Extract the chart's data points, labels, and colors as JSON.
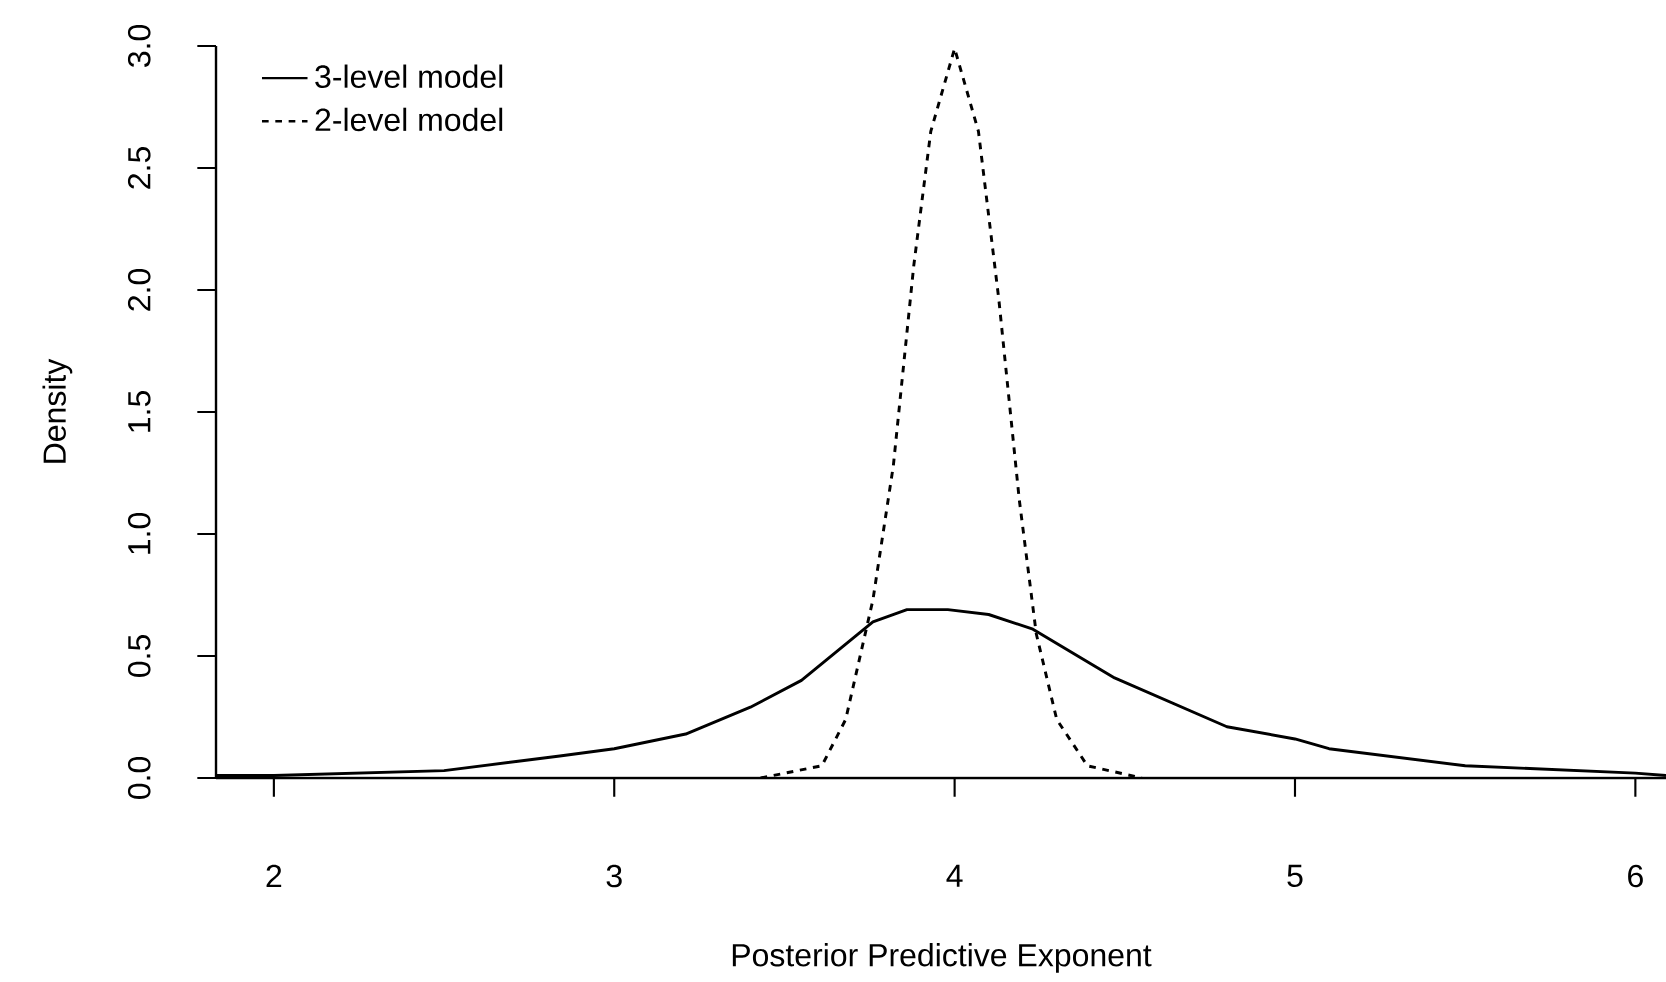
{
  "chart_data": {
    "type": "line",
    "xlabel": "Posterior Predictive Exponent",
    "ylabel": "Density",
    "xlim": [
      1.83,
      6.09
    ],
    "ylim": [
      0,
      3
    ],
    "xticks": [
      2,
      3,
      4,
      5,
      6
    ],
    "yticks": [
      {
        "value": 0,
        "label": "0.0"
      },
      {
        "value": 0.5,
        "label": "0.5"
      },
      {
        "value": 1,
        "label": "1.0"
      },
      {
        "value": 1.5,
        "label": "1.5"
      },
      {
        "value": 2,
        "label": "2.0"
      },
      {
        "value": 2.5,
        "label": "2.5"
      },
      {
        "value": 3,
        "label": "3.0"
      }
    ],
    "legend": "top left",
    "marker": "none",
    "series": [
      {
        "name": "3-level model",
        "color": "#000000",
        "line_style": "solid",
        "x": [
          1.83,
          2.0,
          2.5,
          2.84,
          3.0,
          3.21,
          3.4,
          3.55,
          3.76,
          3.86,
          3.98,
          4.1,
          4.23,
          4.47,
          4.8,
          5.0,
          5.1,
          5.5,
          6.0,
          6.09
        ],
        "values": [
          0.01,
          0.01,
          0.03,
          0.09,
          0.12,
          0.18,
          0.29,
          0.4,
          0.64,
          0.69,
          0.69,
          0.67,
          0.61,
          0.41,
          0.21,
          0.16,
          0.12,
          0.05,
          0.02,
          0.01
        ]
      },
      {
        "name": "2-level model",
        "color": "#000000",
        "line_style": "dotted",
        "x": [
          3.43,
          3.61,
          3.68,
          3.76,
          3.82,
          3.88,
          3.93,
          4.0,
          4.07,
          4.13,
          4.19,
          4.24,
          4.3,
          4.39,
          4.55
        ],
        "values": [
          0,
          0.05,
          0.24,
          0.73,
          1.28,
          2.1,
          2.65,
          2.99,
          2.65,
          1.96,
          1.14,
          0.59,
          0.24,
          0.05,
          0
        ]
      }
    ]
  }
}
